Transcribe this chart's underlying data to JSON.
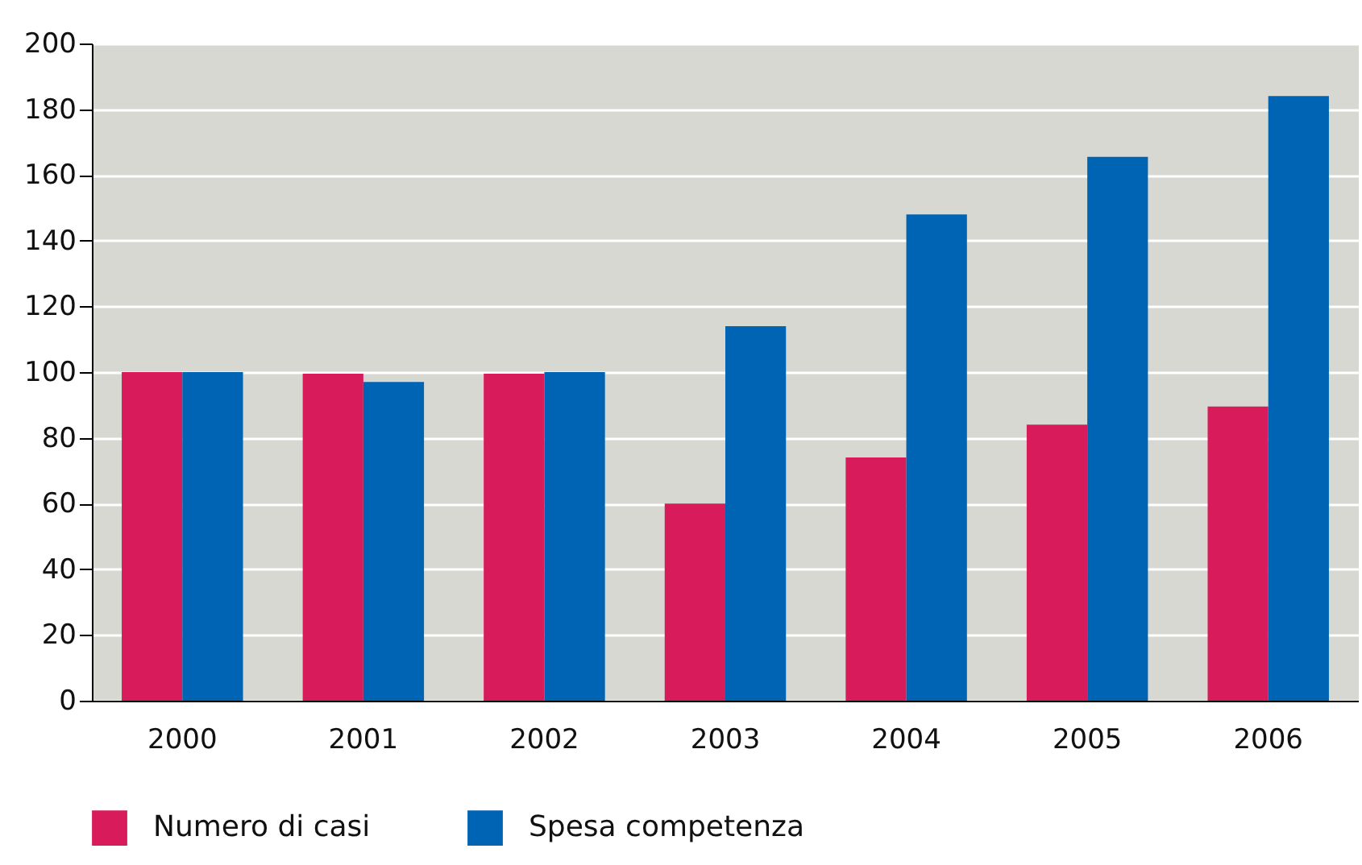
{
  "chart_data": {
    "type": "bar",
    "categories": [
      "2000",
      "2001",
      "2002",
      "2003",
      "2004",
      "2005",
      "2006"
    ],
    "series": [
      {
        "name": "Numero di casi",
        "color": "#d81b5b",
        "values": [
          100,
          99.5,
          99.5,
          60,
          74,
          84,
          89.5
        ]
      },
      {
        "name": "Spesa competenza",
        "color": "#0064b4",
        "values": [
          100,
          97,
          100,
          114,
          148,
          165.5,
          184
        ]
      }
    ],
    "ylim": [
      0,
      200
    ],
    "yticks": [
      0,
      20,
      40,
      60,
      80,
      100,
      120,
      140,
      160,
      180,
      200
    ],
    "grid": "y",
    "legend": "bottom left"
  }
}
